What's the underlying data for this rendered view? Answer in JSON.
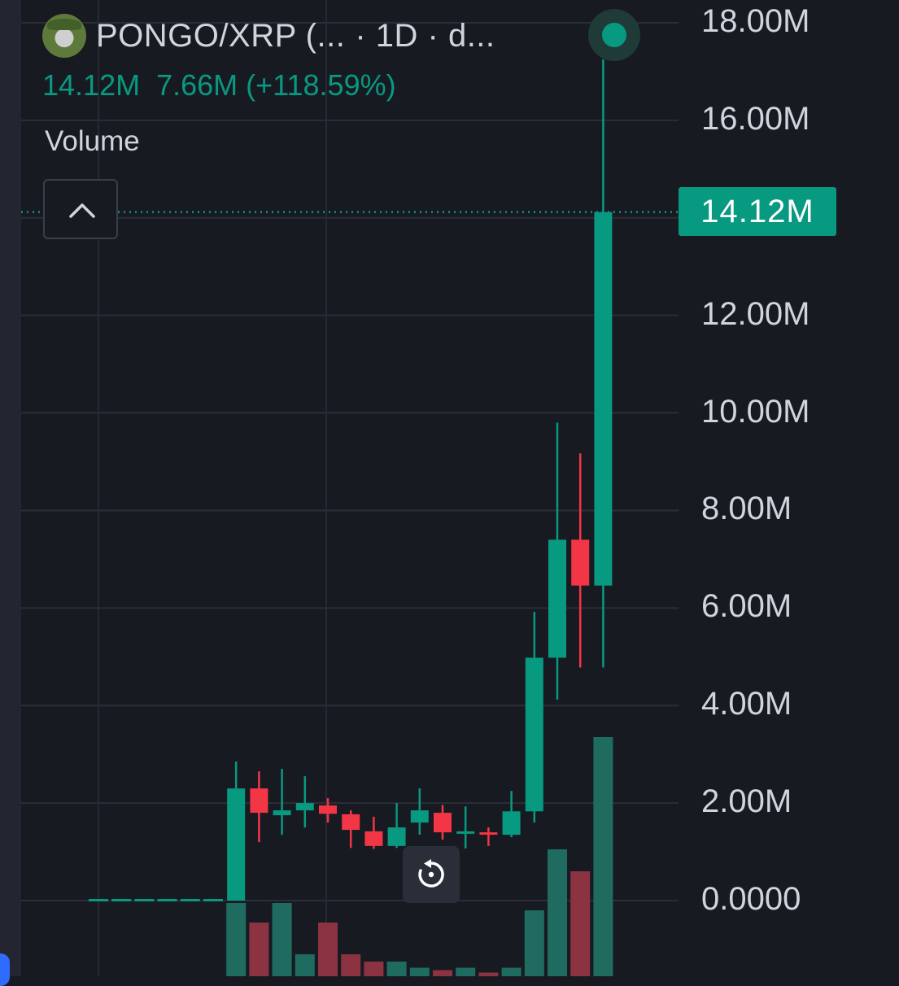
{
  "header": {
    "symbol": "PONGO/XRP (...",
    "interval": "· 1D · d...",
    "last_value": "14.12M",
    "change": "7.66M (+118.59%)",
    "volume_label": "Volume",
    "avatar_icon": "pongo-token-avatar-icon",
    "collapse_icon": "chevron-up-icon",
    "live_icon": "live-status-dot-icon"
  },
  "price_axis": {
    "ticks": [
      "18.00M",
      "16.00M",
      "12.00M",
      "10.00M",
      "8.00M",
      "6.00M",
      "4.00M",
      "2.00M",
      "0.0000"
    ],
    "current_price_label": "14.12M"
  },
  "reset_icon": "reset-chart-icon",
  "colors": {
    "up": "#089981",
    "down": "#f23645",
    "up_volume": "#1f6b5f",
    "down_volume": "#8c3341",
    "background": "#181a22",
    "grid": "#2a2e39",
    "text": "#d1d4dc"
  },
  "chart_data": {
    "type": "candlestick",
    "ylim": [
      0,
      18000000
    ],
    "grid": true,
    "y_ticks": [
      0,
      2000000,
      4000000,
      6000000,
      8000000,
      10000000,
      12000000,
      14000000,
      16000000,
      18000000
    ],
    "current_price": 14120000,
    "candles": [
      {
        "o": 0,
        "h": 0,
        "l": 0,
        "c": 0
      },
      {
        "o": 0,
        "h": 0,
        "l": 0,
        "c": 0
      },
      {
        "o": 0,
        "h": 0,
        "l": 0,
        "c": 0
      },
      {
        "o": 0,
        "h": 0,
        "l": 0,
        "c": 0
      },
      {
        "o": 0,
        "h": 0,
        "l": 0,
        "c": 0
      },
      {
        "o": 0,
        "h": 0,
        "l": 0,
        "c": 0
      },
      {
        "o": 0,
        "h": 2850000,
        "l": 0,
        "c": 2300000
      },
      {
        "o": 2300000,
        "h": 2650000,
        "l": 1200000,
        "c": 1800000
      },
      {
        "o": 1750000,
        "h": 2700000,
        "l": 1350000,
        "c": 1850000
      },
      {
        "o": 1850000,
        "h": 2550000,
        "l": 1500000,
        "c": 2000000
      },
      {
        "o": 1950000,
        "h": 2100000,
        "l": 1600000,
        "c": 1780000
      },
      {
        "o": 1770000,
        "h": 1850000,
        "l": 1080000,
        "c": 1450000
      },
      {
        "o": 1420000,
        "h": 1720000,
        "l": 1060000,
        "c": 1120000
      },
      {
        "o": 1120000,
        "h": 2000000,
        "l": 1080000,
        "c": 1500000
      },
      {
        "o": 1600000,
        "h": 2300000,
        "l": 1350000,
        "c": 1850000
      },
      {
        "o": 1800000,
        "h": 1960000,
        "l": 1250000,
        "c": 1400000
      },
      {
        "o": 1380000,
        "h": 1930000,
        "l": 1070000,
        "c": 1420000
      },
      {
        "o": 1400000,
        "h": 1500000,
        "l": 1120000,
        "c": 1380000
      },
      {
        "o": 1350000,
        "h": 2250000,
        "l": 1300000,
        "c": 1830000
      },
      {
        "o": 1830000,
        "h": 5920000,
        "l": 1600000,
        "c": 4980000
      },
      {
        "o": 4980000,
        "h": 9800000,
        "l": 4120000,
        "c": 7400000
      },
      {
        "o": 7400000,
        "h": 9170000,
        "l": 4780000,
        "c": 6460000
      },
      {
        "o": 6460000,
        "h": 17250000,
        "l": 4780000,
        "c": 14120000
      }
    ],
    "volume": [
      0,
      0,
      0,
      0,
      0,
      0,
      3.0,
      2.2,
      3.0,
      0.9,
      2.2,
      0.9,
      0.6,
      0.6,
      0.35,
      0.25,
      0.35,
      0.15,
      0.35,
      2.7,
      5.2,
      4.3,
      9.8
    ]
  }
}
